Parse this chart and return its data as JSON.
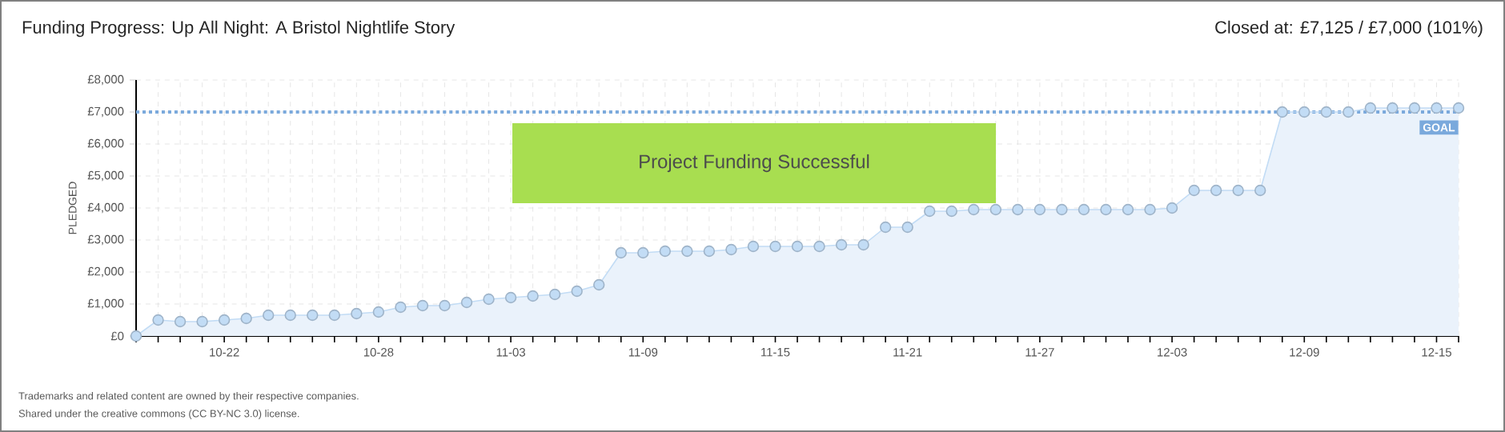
{
  "chart_data": {
    "type": "area",
    "title": "Funding Progress: Up All Night: A Bristol Nightlife Story",
    "subtitle": "Closed at:  £7,125 /  £7,000 (101%)",
    "ylabel": "PLEDGED",
    "categories": [
      null,
      null,
      null,
      null,
      "10-22",
      null,
      null,
      null,
      null,
      null,
      null,
      "10-28",
      null,
      null,
      null,
      null,
      null,
      "11-03",
      null,
      null,
      null,
      null,
      null,
      "11-09",
      null,
      null,
      null,
      null,
      null,
      "11-15",
      null,
      null,
      null,
      null,
      null,
      "11-21",
      null,
      null,
      null,
      null,
      null,
      "11-27",
      null,
      null,
      null,
      null,
      null,
      "12-03",
      null,
      null,
      null,
      null,
      null,
      "12-09",
      null,
      null,
      null,
      null,
      null,
      "12-15",
      null
    ],
    "series": [
      {
        "color": "#c2dcf5",
        "values": [
          0,
          500,
          450,
          450,
          500,
          550,
          650,
          650,
          650,
          650,
          700,
          750,
          900,
          950,
          950,
          1050,
          1150,
          1200,
          1250,
          1300,
          1400,
          1600,
          2600,
          2600,
          2650,
          2650,
          2650,
          2700,
          2800,
          2800,
          2800,
          2800,
          2850,
          2850,
          3400,
          3400,
          3900,
          3900,
          3950,
          3950,
          3950,
          3950,
          3950,
          3950,
          3950,
          3950,
          3950,
          4000,
          4550,
          4550,
          4550,
          4550,
          7000,
          7000,
          7000,
          7000,
          7125,
          7125,
          7125,
          7125,
          7125
        ]
      }
    ],
    "ylim": [
      0,
      8000
    ],
    "yticks": [
      {
        "value": 0,
        "label": "£0"
      },
      {
        "value": 1000,
        "label": "£1,000"
      },
      {
        "value": 2000,
        "label": "£2,000"
      },
      {
        "value": 3000,
        "label": "£3,000"
      },
      {
        "value": 4000,
        "label": "£4,000"
      },
      {
        "value": 5000,
        "label": "£5,000"
      },
      {
        "value": 6000,
        "label": "£6,000"
      },
      {
        "value": 7000,
        "label": "£7,000"
      },
      {
        "value": 8000,
        "label": "£8,000"
      }
    ],
    "ref_lines": [
      {
        "axis": "y",
        "value": 7000,
        "label": "GOAL",
        "color": "#7aa9dc",
        "line_style": "dotted"
      }
    ],
    "annotations": [
      "Project Funding Successful",
      "Trademarks and related content are owned by their respective companies.",
      "Shared under the creative commons (CC BY-NC 3.0) license."
    ],
    "grid": true,
    "marker": "circle"
  }
}
